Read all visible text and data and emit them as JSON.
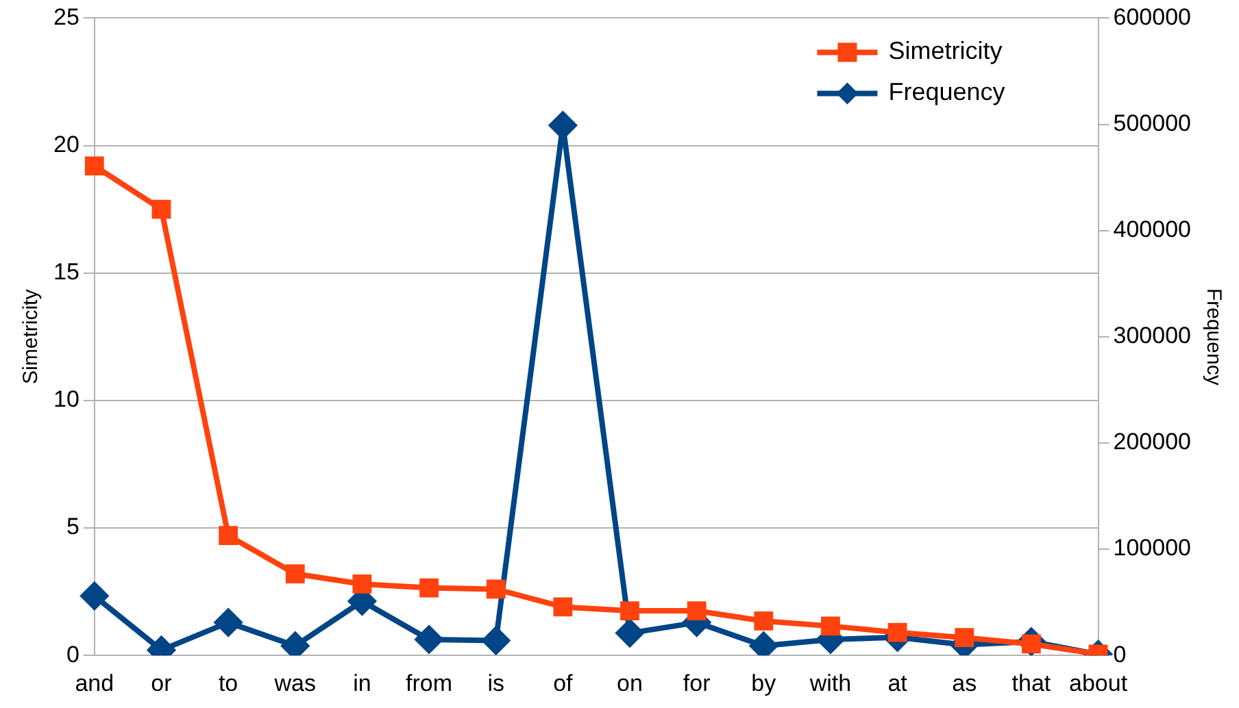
{
  "chart_data": {
    "type": "line",
    "ylabel": "Simetricity",
    "y2label": "Frequency",
    "categories": [
      "and",
      "or",
      "to",
      "was",
      "in",
      "from",
      "is",
      "of",
      "on",
      "for",
      "by",
      "with",
      "at",
      "as",
      "that",
      "about"
    ],
    "series": [
      {
        "name": "Simetricity",
        "color": "#ff420e",
        "marker": "square",
        "values": [
          19.2,
          17.5,
          4.7,
          3.2,
          2.8,
          2.65,
          2.6,
          1.9,
          1.75,
          1.75,
          1.35,
          1.15,
          0.9,
          0.7,
          0.45,
          0.05
        ]
      },
      {
        "name": "Frequency",
        "color": "#004586",
        "axis": "y2",
        "marker": "diamond",
        "values": [
          56000,
          5000,
          31000,
          9000,
          51000,
          15000,
          14000,
          499000,
          21000,
          31000,
          9000,
          15000,
          17000,
          10000,
          13000,
          1000
        ]
      }
    ],
    "ylim": [
      0,
      25
    ],
    "yticks": [
      0,
      5,
      10,
      15,
      20,
      25
    ],
    "y2lim": [
      0,
      600000
    ],
    "y2ticks": [
      0,
      100000,
      200000,
      300000,
      400000,
      500000,
      600000
    ],
    "grid": "y",
    "legend": "top right",
    "line_style": "solid"
  }
}
